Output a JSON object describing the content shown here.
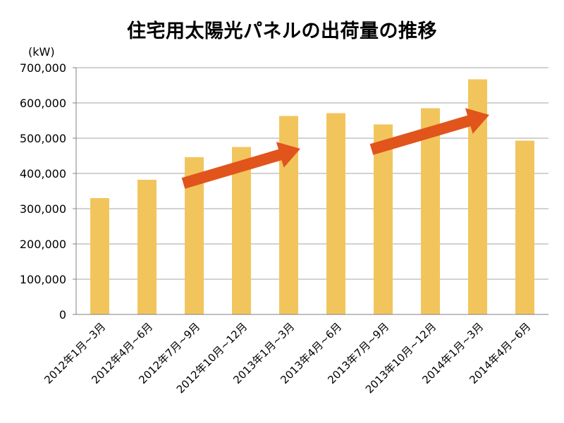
{
  "chart_data": {
    "type": "bar",
    "title": "住宅用太陽光パネルの出荷量の推移",
    "unit_label": "(kW)",
    "categories": [
      "2012年1月~3月",
      "2012年4月~6月",
      "2012年7月~9月",
      "2012年10月~12月",
      "2013年1月~3月",
      "2013年4月~6月",
      "2013年7月~9月",
      "2013年10月~12月",
      "2014年1月~3月",
      "2014年4月~6月"
    ],
    "values": [
      330000,
      382000,
      446000,
      475000,
      563000,
      571000,
      539000,
      585000,
      667000,
      493000
    ],
    "ylim": [
      0,
      700000
    ],
    "yticks": [
      0,
      100000,
      200000,
      300000,
      400000,
      500000,
      600000,
      700000
    ],
    "ytick_labels": [
      "0",
      "100,000",
      "200,000",
      "300,000",
      "400,000",
      "500,000",
      "600,000",
      "700,000"
    ],
    "grid": true,
    "bar_color": "#F2C55C",
    "annotations": [
      {
        "type": "trend-arrow",
        "from_category": 2,
        "to_category": 4,
        "color": "#E1541C"
      },
      {
        "type": "trend-arrow",
        "from_category": 6,
        "to_category": 8,
        "color": "#E1541C"
      }
    ]
  }
}
